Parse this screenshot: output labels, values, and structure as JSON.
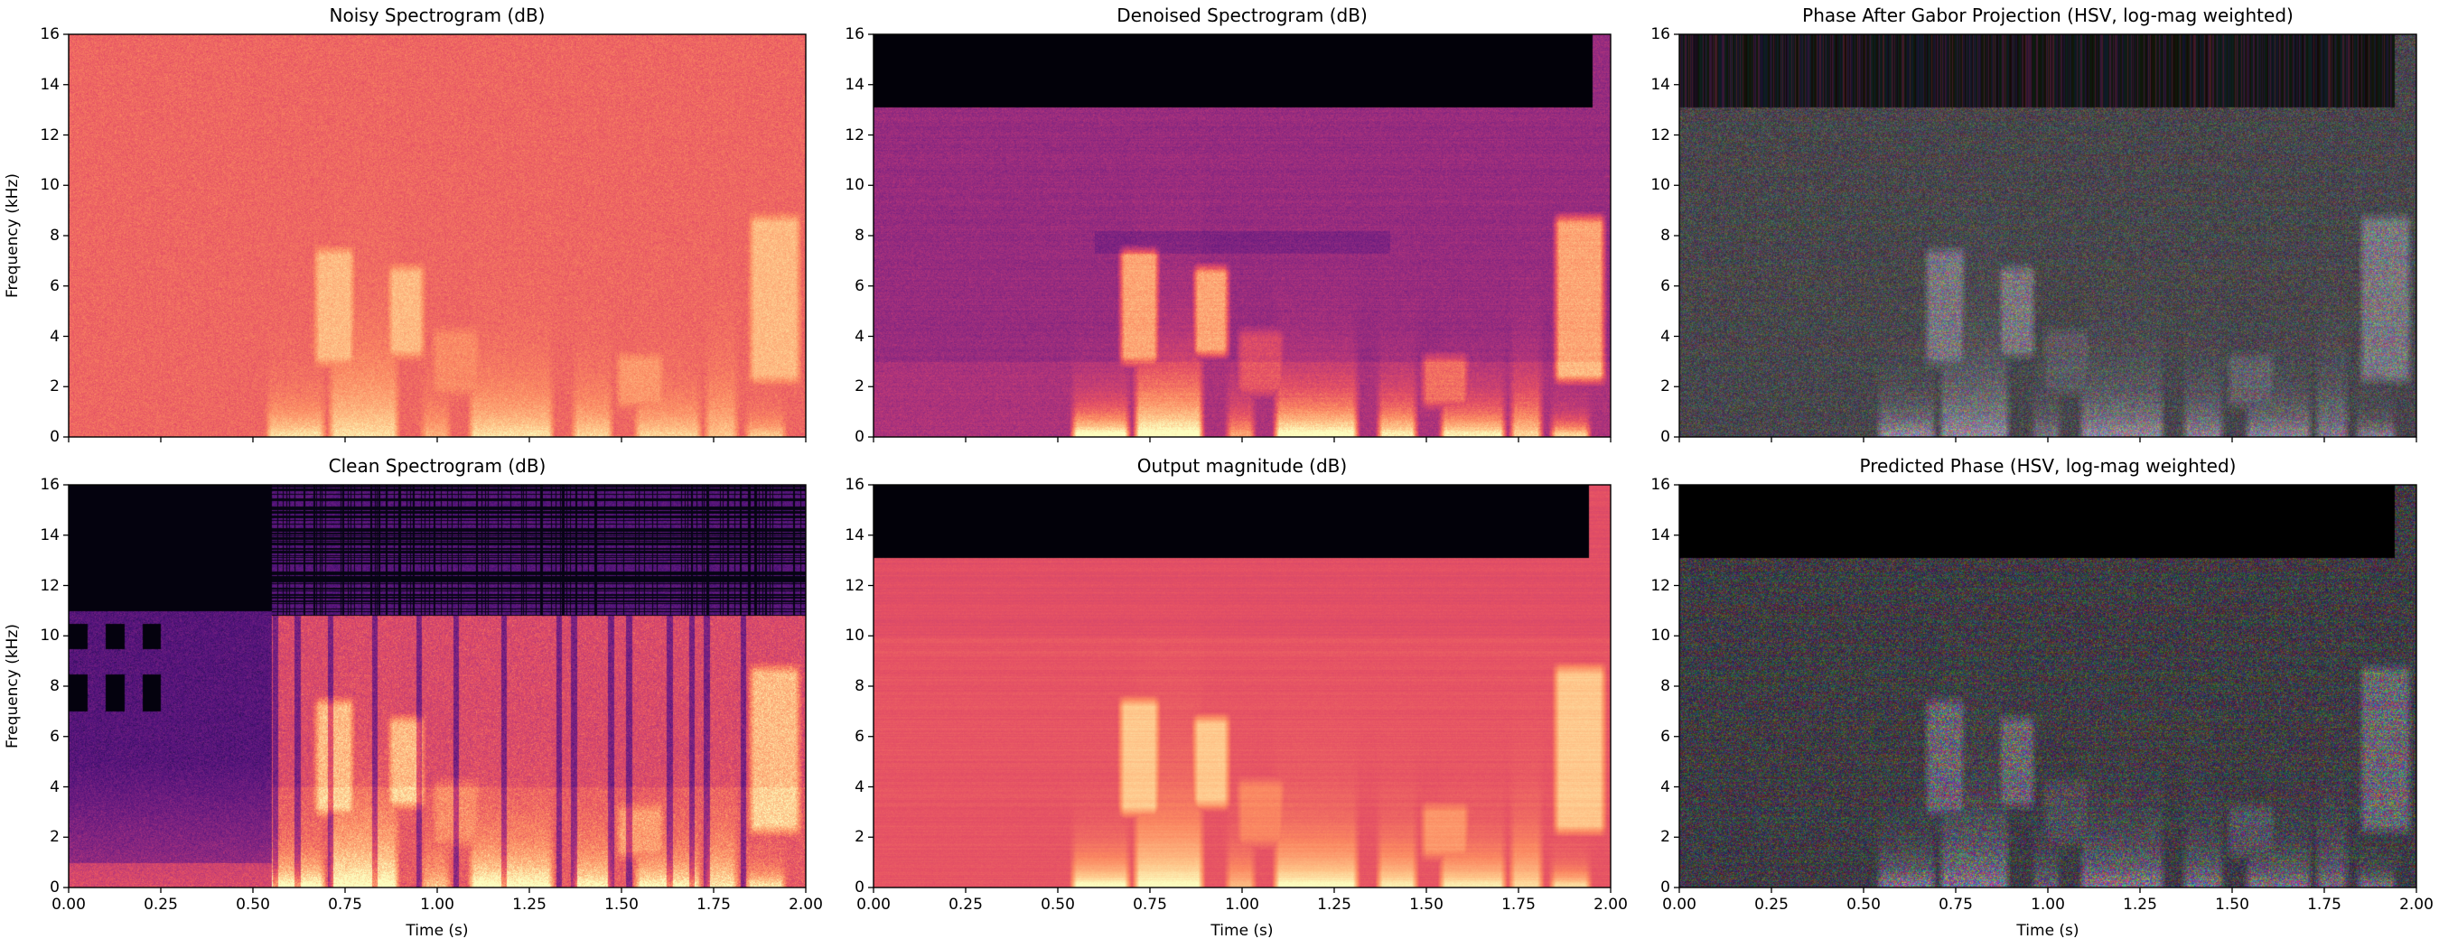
{
  "figure": {
    "layout": "2 rows x 3 columns of spectrogram panels"
  },
  "chart_data": [
    {
      "type": "heatmap",
      "title": "Noisy Spectrogram (dB)",
      "xlabel": "",
      "ylabel": "Frequency (kHz)",
      "xlim": [
        0,
        2
      ],
      "ylim": [
        0,
        16
      ],
      "xticks": [
        0,
        0.25,
        0.5,
        0.75,
        1.0,
        1.25,
        1.5,
        1.75,
        2.0
      ],
      "yticks": [
        0,
        2,
        4,
        6,
        8,
        10,
        12,
        14,
        16
      ],
      "ytick_labels": [
        "0",
        "2",
        "4",
        "6",
        "8",
        "10",
        "12",
        "14",
        "16"
      ],
      "colormap": "magma",
      "kind": "noisy"
    },
    {
      "type": "heatmap",
      "title": "Denoised Spectrogram (dB)",
      "xlabel": "",
      "ylabel": "",
      "xlim": [
        0,
        2
      ],
      "ylim": [
        0,
        16
      ],
      "xticks": [
        0,
        0.25,
        0.5,
        0.75,
        1.0,
        1.25,
        1.5,
        1.75,
        2.0
      ],
      "yticks": [
        0,
        2,
        4,
        6,
        8,
        10,
        12,
        14,
        16
      ],
      "ytick_labels": [
        "0",
        "2",
        "4",
        "6",
        "8",
        "10",
        "12",
        "14",
        "16"
      ],
      "colormap": "magma",
      "kind": "denoised"
    },
    {
      "type": "heatmap",
      "title": "Phase After Gabor Projection (HSV, log-mag weighted)",
      "xlabel": "",
      "ylabel": "",
      "xlim": [
        0,
        2
      ],
      "ylim": [
        0,
        16
      ],
      "xticks": [
        0,
        0.25,
        0.5,
        0.75,
        1.0,
        1.25,
        1.5,
        1.75,
        2.0
      ],
      "yticks": [
        0,
        2,
        4,
        6,
        8,
        10,
        12,
        14,
        16
      ],
      "ytick_labels": [
        "0",
        "2",
        "4",
        "6",
        "8",
        "10",
        "12",
        "14",
        "16"
      ],
      "colormap": "hsv",
      "kind": "gabor"
    },
    {
      "type": "heatmap",
      "title": "Clean Spectrogram (dB)",
      "xlabel": "Time (s)",
      "ylabel": "Frequency (kHz)",
      "xlim": [
        0,
        2
      ],
      "ylim": [
        0,
        16
      ],
      "xticks": [
        0,
        0.25,
        0.5,
        0.75,
        1.0,
        1.25,
        1.5,
        1.75,
        2.0
      ],
      "yticks": [
        0,
        2,
        4,
        6,
        8,
        10,
        12,
        14,
        16
      ],
      "xtick_labels": [
        "0.00",
        "0.25",
        "0.50",
        "0.75",
        "1.00",
        "1.25",
        "1.50",
        "1.75",
        "2.00"
      ],
      "ytick_labels": [
        "0",
        "2",
        "4",
        "6",
        "8",
        "10",
        "12",
        "14",
        "16"
      ],
      "colormap": "magma",
      "kind": "clean"
    },
    {
      "type": "heatmap",
      "title": "Output magnitude (dB)",
      "xlabel": "Time (s)",
      "ylabel": "",
      "xlim": [
        0,
        2
      ],
      "ylim": [
        0,
        16
      ],
      "xticks": [
        0,
        0.25,
        0.5,
        0.75,
        1.0,
        1.25,
        1.5,
        1.75,
        2.0
      ],
      "yticks": [
        0,
        2,
        4,
        6,
        8,
        10,
        12,
        14,
        16
      ],
      "xtick_labels": [
        "0.00",
        "0.25",
        "0.50",
        "0.75",
        "1.00",
        "1.25",
        "1.50",
        "1.75",
        "2.00"
      ],
      "ytick_labels": [
        "0",
        "2",
        "4",
        "6",
        "8",
        "10",
        "12",
        "14",
        "16"
      ],
      "colormap": "magma",
      "kind": "output"
    },
    {
      "type": "heatmap",
      "title": "Predicted Phase (HSV, log-mag weighted)",
      "xlabel": "Time (s)",
      "ylabel": "",
      "xlim": [
        0,
        2
      ],
      "ylim": [
        0,
        16
      ],
      "xticks": [
        0,
        0.25,
        0.5,
        0.75,
        1.0,
        1.25,
        1.5,
        1.75,
        2.0
      ],
      "yticks": [
        0,
        2,
        4,
        6,
        8,
        10,
        12,
        14,
        16
      ],
      "xtick_labels": [
        "0.00",
        "0.25",
        "0.50",
        "0.75",
        "1.00",
        "1.25",
        "1.50",
        "1.75",
        "2.00"
      ],
      "ytick_labels": [
        "0",
        "2",
        "4",
        "6",
        "8",
        "10",
        "12",
        "14",
        "16"
      ],
      "colormap": "hsv",
      "kind": "predicted"
    }
  ]
}
